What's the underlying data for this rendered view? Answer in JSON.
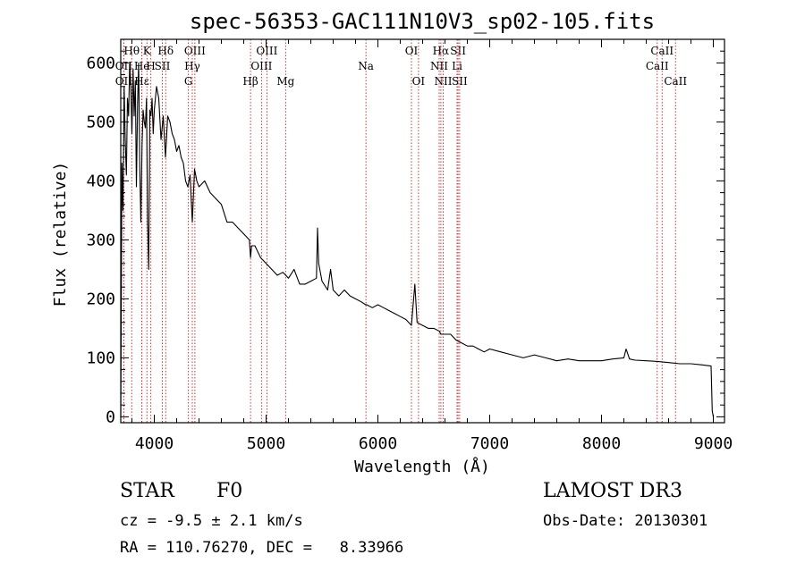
{
  "chart_data": {
    "type": "line",
    "title": "spec-56353-GAC111N10V3_sp02-105.fits",
    "xlabel": "Wavelength (Å)",
    "ylabel": "Flux (relative)",
    "xlim": [
      3700,
      9100
    ],
    "ylim": [
      -10,
      640
    ],
    "xticks": [
      4000,
      5000,
      6000,
      7000,
      8000,
      9000
    ],
    "yticks": [
      0,
      100,
      200,
      300,
      400,
      500,
      600
    ],
    "series": [
      {
        "name": "flux",
        "x": [
          3700,
          3710,
          3720,
          3730,
          3740,
          3750,
          3760,
          3770,
          3780,
          3790,
          3800,
          3810,
          3820,
          3830,
          3840,
          3850,
          3860,
          3870,
          3880,
          3890,
          3900,
          3910,
          3920,
          3930,
          3940,
          3950,
          3960,
          3970,
          3980,
          3990,
          4000,
          4020,
          4040,
          4060,
          4080,
          4100,
          4120,
          4140,
          4160,
          4180,
          4200,
          4220,
          4240,
          4260,
          4280,
          4300,
          4320,
          4340,
          4360,
          4380,
          4400,
          4450,
          4500,
          4550,
          4600,
          4650,
          4700,
          4750,
          4800,
          4850,
          4861,
          4870,
          4900,
          4950,
          5000,
          5050,
          5100,
          5150,
          5200,
          5250,
          5300,
          5350,
          5400,
          5450,
          5460,
          5470,
          5500,
          5550,
          5577,
          5600,
          5650,
          5700,
          5750,
          5800,
          5850,
          5890,
          5900,
          5950,
          6000,
          6050,
          6100,
          6150,
          6200,
          6250,
          6300,
          6330,
          6350,
          6400,
          6450,
          6500,
          6550,
          6563,
          6600,
          6650,
          6700,
          6750,
          6800,
          6850,
          6900,
          6950,
          7000,
          7100,
          7200,
          7300,
          7400,
          7500,
          7600,
          7700,
          7800,
          7900,
          8000,
          8100,
          8200,
          8220,
          8250,
          8300,
          8400,
          8500,
          8600,
          8700,
          8800,
          8900,
          8980,
          8990,
          9000
        ],
        "y": [
          0,
          430,
          350,
          560,
          470,
          410,
          540,
          510,
          600,
          560,
          480,
          590,
          510,
          570,
          390,
          530,
          600,
          420,
          330,
          460,
          520,
          500,
          490,
          540,
          330,
          250,
          520,
          510,
          540,
          480,
          520,
          560,
          540,
          470,
          510,
          440,
          510,
          500,
          480,
          470,
          450,
          460,
          440,
          430,
          400,
          390,
          410,
          330,
          420,
          400,
          390,
          400,
          380,
          370,
          360,
          330,
          330,
          320,
          310,
          300,
          270,
          290,
          290,
          270,
          260,
          250,
          240,
          245,
          235,
          250,
          225,
          225,
          230,
          235,
          320,
          260,
          230,
          215,
          250,
          215,
          205,
          215,
          205,
          200,
          195,
          190,
          190,
          185,
          190,
          185,
          180,
          175,
          170,
          165,
          155,
          225,
          160,
          155,
          150,
          150,
          145,
          140,
          140,
          140,
          130,
          125,
          120,
          120,
          115,
          110,
          115,
          110,
          105,
          100,
          105,
          100,
          95,
          98,
          95,
          95,
          95,
          98,
          100,
          115,
          98,
          96,
          95,
          94,
          92,
          90,
          90,
          88,
          86,
          10,
          0
        ]
      }
    ],
    "lines": [
      {
        "label": "Hθ",
        "x": 3798,
        "row": 1
      },
      {
        "label": "K",
        "x": 3934,
        "row": 1
      },
      {
        "label": "Hδ",
        "x": 4102,
        "row": 1
      },
      {
        "label": "OIII",
        "x": 4363,
        "row": 1
      },
      {
        "label": "OIII",
        "x": 5007,
        "row": 1
      },
      {
        "label": "OI",
        "x": 6300,
        "row": 1
      },
      {
        "label": "Hα",
        "x": 6563,
        "row": 1
      },
      {
        "label": "SII",
        "x": 6717,
        "row": 1
      },
      {
        "label": "CaII",
        "x": 8542,
        "row": 1
      },
      {
        "label": "OII",
        "x": 3727,
        "row": 2
      },
      {
        "label": "He",
        "x": 3889,
        "row": 2
      },
      {
        "label": "H",
        "x": 3969,
        "row": 2
      },
      {
        "label": "SII",
        "x": 4072,
        "row": 2
      },
      {
        "label": "Hγ",
        "x": 4340,
        "row": 2
      },
      {
        "label": "OIII",
        "x": 4959,
        "row": 2
      },
      {
        "label": "Na",
        "x": 5893,
        "row": 2
      },
      {
        "label": "NII",
        "x": 6548,
        "row": 2
      },
      {
        "label": "Li",
        "x": 6708,
        "row": 2
      },
      {
        "label": "CaII",
        "x": 8498,
        "row": 2
      },
      {
        "label": "OII",
        "x": 3727,
        "row": 3
      },
      {
        "label": "Hε",
        "x": 3889,
        "row": 3
      },
      {
        "label": "G",
        "x": 4305,
        "row": 3
      },
      {
        "label": "Hβ",
        "x": 4861,
        "row": 3
      },
      {
        "label": "Mg",
        "x": 5175,
        "row": 3
      },
      {
        "label": "OI",
        "x": 6363,
        "row": 3
      },
      {
        "label": "NII",
        "x": 6584,
        "row": 3
      },
      {
        "label": "SII",
        "x": 6731,
        "row": 3
      },
      {
        "label": "CaII",
        "x": 8662,
        "row": 3
      }
    ],
    "line_color": "#cc2222"
  },
  "info": {
    "class": "STAR",
    "subclass": "F0",
    "survey": "LAMOST DR3",
    "cz": "cz = -9.5 ± 2.1 km/s",
    "obs_date": "Obs-Date: 20130301",
    "radec": "RA = 110.76270, DEC =   8.33966"
  }
}
